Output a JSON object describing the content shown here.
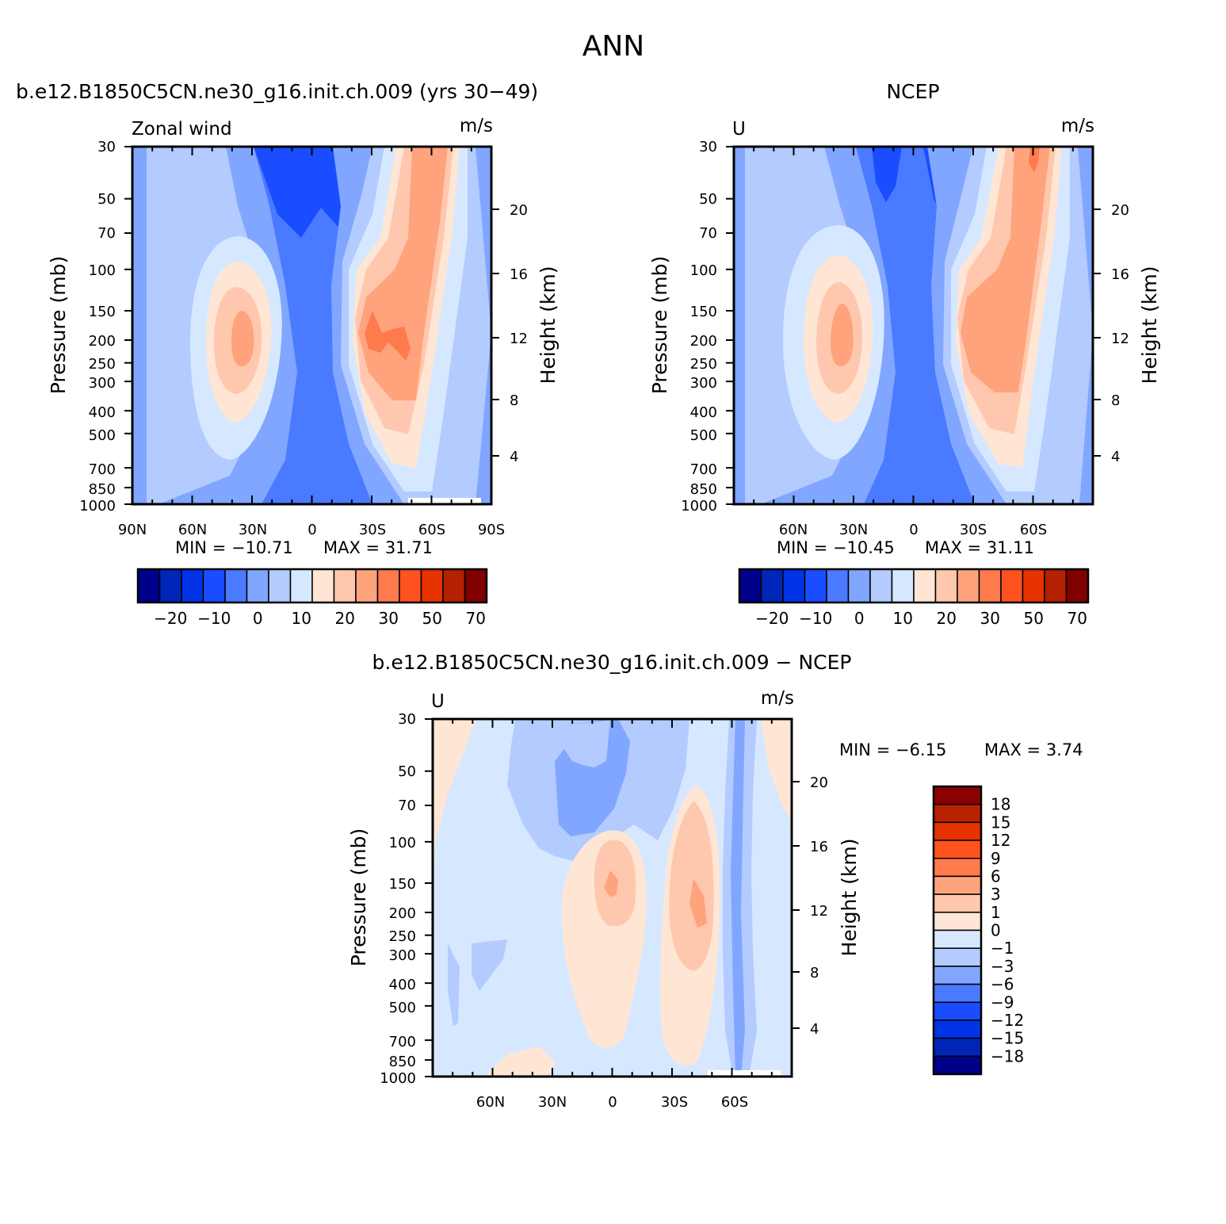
{
  "page": {
    "title": "ANN",
    "diff_title": "b.e12.B1850C5CN.ne30_g16.init.ch.009 − NCEP"
  },
  "pressure_ticks": [
    30,
    50,
    70,
    100,
    150,
    200,
    250,
    300,
    400,
    500,
    700,
    850,
    1000
  ],
  "height_ticks": [
    20,
    16,
    12,
    8,
    4
  ],
  "chart_data": [
    {
      "type": "heatmap",
      "id": "model",
      "title": "b.e12.B1850C5CN.ne30_g16.init.ch.009 (yrs 30−49)",
      "left_label": "Zonal wind",
      "right_label": "m/s",
      "ylabel": "Pressure (mb)",
      "y2label": "Height (km)",
      "x_ticks": [
        "90N",
        "60N",
        "30N",
        "0",
        "30S",
        "60S",
        "90S"
      ],
      "min_text": "MIN = −10.71",
      "max_text": "MAX = 31.71",
      "min": -10.71,
      "max": 31.71,
      "xlim": [
        90,
        -90
      ],
      "ylim": [
        1000,
        30
      ],
      "levels_labels": [
        "−20",
        "−10",
        "0",
        "10",
        "20",
        "30",
        "50",
        "70"
      ],
      "colors": [
        "#00008b",
        "#0026b8",
        "#0033e6",
        "#1a4dff",
        "#4a7aff",
        "#80a6ff",
        "#b3cbff",
        "#d6e8ff",
        "#ffe6d4",
        "#ffc8ae",
        "#ffa37d",
        "#ff7a4d",
        "#ff521f",
        "#e63300",
        "#b32100",
        "#800000"
      ]
    },
    {
      "type": "heatmap",
      "id": "ncep",
      "title": "NCEP",
      "left_label": "U",
      "right_label": "m/s",
      "ylabel": "Pressure (mb)",
      "y2label": "Height (km)",
      "x_ticks": [
        "60N",
        "30N",
        "0",
        "30S",
        "60S"
      ],
      "min_text": "MIN = −10.45",
      "max_text": "MAX = 31.11",
      "min": -10.45,
      "max": 31.11,
      "xlim": [
        90,
        -90
      ],
      "ylim": [
        1000,
        30
      ],
      "levels_labels": [
        "−20",
        "−10",
        "0",
        "10",
        "20",
        "30",
        "50",
        "70"
      ],
      "colors": [
        "#00008b",
        "#0026b8",
        "#0033e6",
        "#1a4dff",
        "#4a7aff",
        "#80a6ff",
        "#b3cbff",
        "#d6e8ff",
        "#ffe6d4",
        "#ffc8ae",
        "#ffa37d",
        "#ff7a4d",
        "#ff521f",
        "#e63300",
        "#b32100",
        "#800000"
      ]
    },
    {
      "type": "heatmap",
      "id": "diff",
      "title": "b.e12.B1850C5CN.ne30_g16.init.ch.009 − NCEP",
      "left_label": "U",
      "right_label": "m/s",
      "ylabel": "Pressure (mb)",
      "y2label": "Height (km)",
      "x_ticks": [
        "60N",
        "30N",
        "0",
        "30S",
        "60S"
      ],
      "min_text": "MIN = −6.15",
      "max_text": "MAX = 3.74",
      "min": -6.15,
      "max": 3.74,
      "xlim": [
        90,
        -90
      ],
      "ylim": [
        1000,
        30
      ],
      "levels_labels": [
        "18",
        "15",
        "12",
        "9",
        "6",
        "3",
        "1",
        "0",
        "−1",
        "−3",
        "−6",
        "−9",
        "−12",
        "−15",
        "−18"
      ],
      "colors": [
        "#8b0000",
        "#b82100",
        "#e63300",
        "#ff521f",
        "#ff7a4d",
        "#ffa37d",
        "#ffc8ae",
        "#ffe6d4",
        "#d6e8ff",
        "#b3cbff",
        "#80a6ff",
        "#4a7aff",
        "#1a4dff",
        "#0033e6",
        "#0026b8",
        "#00008b"
      ]
    }
  ]
}
